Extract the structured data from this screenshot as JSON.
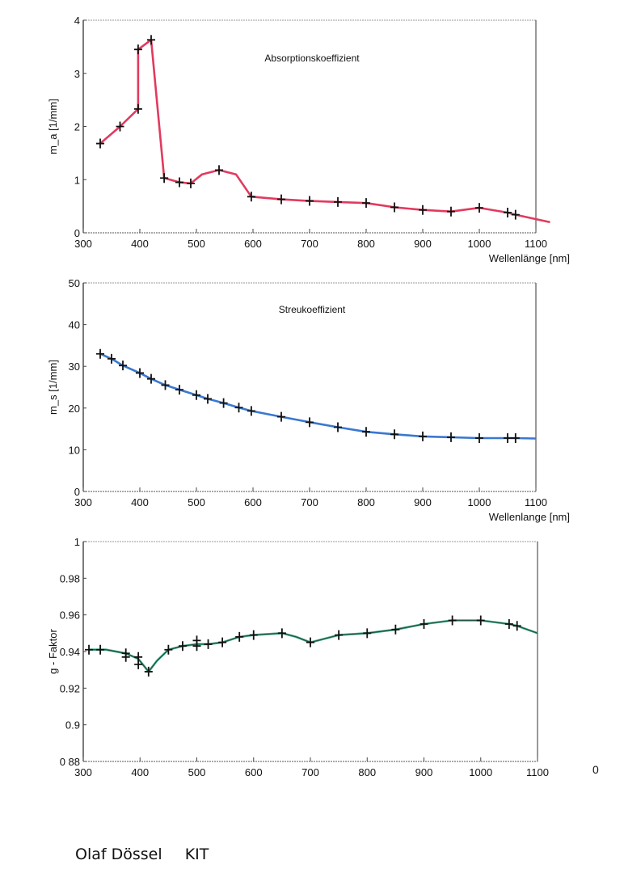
{
  "chart_data": [
    {
      "type": "line",
      "title": "Absorptionskoeffizient",
      "xlabel": "Wellenlänge [nm]",
      "ylabel": "m_a [1/mm]",
      "xlim": [
        300,
        1100
      ],
      "ylim": [
        0,
        4
      ],
      "xticks": [
        "300",
        "400",
        "500",
        "600",
        "700",
        "800",
        "900",
        "1000",
        "1100"
      ],
      "yticks": [
        "0",
        "1",
        "2",
        "3",
        "4"
      ],
      "color": "#e23a5e",
      "line": [
        [
          330,
          1.68
        ],
        [
          365,
          2.0
        ],
        [
          397,
          2.33
        ],
        [
          397,
          3.45
        ],
        [
          420,
          3.63
        ],
        [
          443,
          1.03
        ],
        [
          470,
          0.95
        ],
        [
          490,
          0.93
        ],
        [
          510,
          1.1
        ],
        [
          540,
          1.18
        ],
        [
          570,
          1.1
        ],
        [
          597,
          0.68
        ],
        [
          650,
          0.63
        ],
        [
          700,
          0.6
        ],
        [
          750,
          0.58
        ],
        [
          800,
          0.56
        ],
        [
          850,
          0.48
        ],
        [
          900,
          0.43
        ],
        [
          950,
          0.4
        ],
        [
          1000,
          0.47
        ],
        [
          1050,
          0.38
        ],
        [
          1064,
          0.34
        ],
        [
          1125,
          0.2
        ]
      ],
      "markers": [
        [
          330,
          1.68
        ],
        [
          365,
          2.0
        ],
        [
          397,
          2.33
        ],
        [
          397,
          3.45
        ],
        [
          420,
          3.63
        ],
        [
          443,
          1.03
        ],
        [
          470,
          0.95
        ],
        [
          490,
          0.93
        ],
        [
          540,
          1.18
        ],
        [
          597,
          0.68
        ],
        [
          650,
          0.63
        ],
        [
          700,
          0.6
        ],
        [
          750,
          0.58
        ],
        [
          800,
          0.56
        ],
        [
          850,
          0.48
        ],
        [
          900,
          0.43
        ],
        [
          950,
          0.4
        ],
        [
          1000,
          0.47
        ],
        [
          1050,
          0.38
        ],
        [
          1064,
          0.34
        ]
      ]
    },
    {
      "type": "line",
      "title": "Streukoeffizient",
      "xlabel": "Wellenlange [nm]",
      "ylabel": "m_s [1/mm]",
      "xlim": [
        300,
        1100
      ],
      "ylim": [
        0,
        50
      ],
      "xticks": [
        "300",
        "400",
        "500",
        "600",
        "700",
        "800",
        "900",
        "1000",
        "1100"
      ],
      "yticks": [
        "0",
        "10",
        "20",
        "30",
        "40",
        "50"
      ],
      "color": "#3a78d0",
      "line": [
        [
          330,
          33
        ],
        [
          350,
          31.8
        ],
        [
          370,
          30.2
        ],
        [
          400,
          28.4
        ],
        [
          420,
          27
        ],
        [
          445,
          25.5
        ],
        [
          470,
          24.4
        ],
        [
          500,
          23.1
        ],
        [
          520,
          22.2
        ],
        [
          548,
          21.2
        ],
        [
          575,
          20.1
        ],
        [
          597,
          19.3
        ],
        [
          650,
          17.9
        ],
        [
          700,
          16.6
        ],
        [
          750,
          15.4
        ],
        [
          800,
          14.3
        ],
        [
          850,
          13.7
        ],
        [
          900,
          13.2
        ],
        [
          950,
          13.0
        ],
        [
          1000,
          12.8
        ],
        [
          1050,
          12.8
        ],
        [
          1064,
          12.8
        ],
        [
          1100,
          12.7
        ]
      ],
      "markers": [
        [
          330,
          33
        ],
        [
          350,
          31.8
        ],
        [
          370,
          30.2
        ],
        [
          400,
          28.4
        ],
        [
          420,
          27
        ],
        [
          445,
          25.5
        ],
        [
          470,
          24.4
        ],
        [
          500,
          23.1
        ],
        [
          520,
          22.2
        ],
        [
          548,
          21.2
        ],
        [
          575,
          20.1
        ],
        [
          597,
          19.3
        ],
        [
          650,
          17.9
        ],
        [
          700,
          16.6
        ],
        [
          750,
          15.4
        ],
        [
          800,
          14.3
        ],
        [
          850,
          13.7
        ],
        [
          900,
          13.2
        ],
        [
          950,
          13.0
        ],
        [
          1000,
          12.8
        ],
        [
          1050,
          12.8
        ],
        [
          1064,
          12.8
        ]
      ]
    },
    {
      "type": "line",
      "title": "",
      "xlabel": "",
      "ylabel": "g - Faktor",
      "xlim": [
        300,
        1100
      ],
      "ylim": [
        0.88,
        1
      ],
      "xticks": [
        "300",
        "400",
        "500",
        "600",
        "700",
        "800",
        "900",
        "1000",
        "1100"
      ],
      "yticks": [
        "0 88",
        "0.9",
        "0.92",
        "0.94",
        "0.96",
        "0.98",
        "1"
      ],
      "color": "#3aa080",
      "line": [
        [
          310,
          0.941
        ],
        [
          340,
          0.941
        ],
        [
          375,
          0.939
        ],
        [
          397,
          0.936
        ],
        [
          415,
          0.929
        ],
        [
          430,
          0.935
        ],
        [
          450,
          0.941
        ],
        [
          475,
          0.943
        ],
        [
          500,
          0.944
        ],
        [
          520,
          0.944
        ],
        [
          545,
          0.945
        ],
        [
          575,
          0.948
        ],
        [
          600,
          0.949
        ],
        [
          650,
          0.95
        ],
        [
          675,
          0.948
        ],
        [
          700,
          0.945
        ],
        [
          750,
          0.949
        ],
        [
          800,
          0.95
        ],
        [
          850,
          0.952
        ],
        [
          900,
          0.955
        ],
        [
          950,
          0.957
        ],
        [
          1000,
          0.957
        ],
        [
          1050,
          0.955
        ],
        [
          1064,
          0.954
        ],
        [
          1100,
          0.95
        ]
      ],
      "markers": [
        [
          310,
          0.941
        ],
        [
          330,
          0.941
        ],
        [
          375,
          0.939
        ],
        [
          375,
          0.937
        ],
        [
          397,
          0.937
        ],
        [
          397,
          0.933
        ],
        [
          415,
          0.929
        ],
        [
          450,
          0.941
        ],
        [
          475,
          0.943
        ],
        [
          500,
          0.946
        ],
        [
          500,
          0.943
        ],
        [
          520,
          0.944
        ],
        [
          545,
          0.945
        ],
        [
          575,
          0.948
        ],
        [
          600,
          0.949
        ],
        [
          650,
          0.95
        ],
        [
          700,
          0.945
        ],
        [
          750,
          0.949
        ],
        [
          800,
          0.95
        ],
        [
          850,
          0.952
        ],
        [
          900,
          0.955
        ],
        [
          950,
          0.957
        ],
        [
          1000,
          0.957
        ],
        [
          1050,
          0.955
        ],
        [
          1064,
          0.954
        ]
      ]
    }
  ],
  "stray_mark": "0",
  "footer": {
    "author": "Olaf Dössel",
    "institution": "KIT"
  }
}
